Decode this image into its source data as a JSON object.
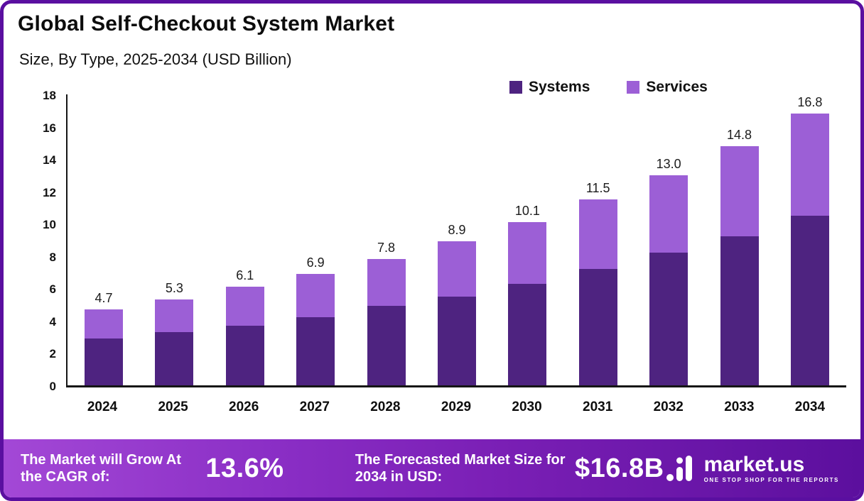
{
  "header": {
    "title": "Global Self-Checkout System Market",
    "subtitle": "Size, By Type, 2025-2034 (USD Billion)"
  },
  "chart_data": {
    "type": "bar",
    "stacked": true,
    "title": "Global Self-Checkout System Market Size, By Type, 2025-2034 (USD Billion)",
    "categories": [
      "2024",
      "2025",
      "2026",
      "2027",
      "2028",
      "2029",
      "2030",
      "2031",
      "2032",
      "2033",
      "2034"
    ],
    "series": [
      {
        "name": "Systems",
        "color": "#4e2380",
        "values": [
          2.9,
          3.3,
          3.7,
          4.2,
          4.9,
          5.5,
          6.3,
          7.2,
          8.2,
          9.2,
          10.5
        ]
      },
      {
        "name": "Services",
        "color": "#9c5fd6",
        "values": [
          1.8,
          2.0,
          2.4,
          2.7,
          2.9,
          3.4,
          3.8,
          4.3,
          4.8,
          5.6,
          6.3
        ]
      }
    ],
    "totals": [
      4.7,
      5.3,
      6.1,
      6.9,
      7.8,
      8.9,
      10.1,
      11.5,
      13.0,
      14.8,
      16.8
    ],
    "total_labels": [
      "4.7",
      "5.3",
      "6.1",
      "6.9",
      "7.8",
      "8.9",
      "10.1",
      "11.5",
      "13.0",
      "14.8",
      "16.8"
    ],
    "xlabel": "",
    "ylabel": "",
    "ylim": [
      0,
      18
    ],
    "ytick_step": 2,
    "yticks": [
      0,
      2,
      4,
      6,
      8,
      10,
      12,
      14,
      16,
      18
    ],
    "grid": false,
    "legend_position": "top-right"
  },
  "footer": {
    "cagr_label": "The Market will Grow At the CAGR of:",
    "cagr_value": "13.6%",
    "forecast_label": "The Forecasted Market Size for 2034 in USD:",
    "forecast_value": "$16.8B",
    "brand": {
      "name": "market.us",
      "tagline": "ONE STOP SHOP FOR THE REPORTS"
    }
  },
  "colors": {
    "frame_border": "#5a0fa0",
    "systems": "#4e2380",
    "services": "#9c5fd6",
    "footer_gradient_start": "#a348d6",
    "footer_gradient_end": "#5c0f9e"
  }
}
